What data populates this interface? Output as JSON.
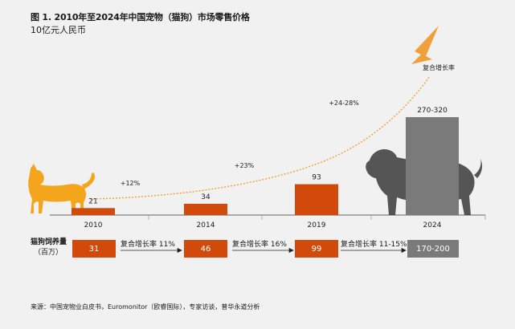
{
  "title": "图 1. 2010年至2024年中国宠物（猫狗）市场零售价格",
  "unit": "10亿元人民币",
  "colors": {
    "bar": "#d24a0b",
    "forecast_bar": "#7a7a7a",
    "arrow": "#f0a03a",
    "icon": "#f3a51c",
    "dog": "#555555"
  },
  "icons": [
    "cat-silhouette-icon",
    "dog-silhouette-icon",
    "growth-arrow-icon"
  ],
  "chart_data": {
    "type": "bar",
    "title": "图 1. 2010年至2024年中国宠物（猫狗）市场零售价格",
    "ylabel": "10亿元人民币",
    "categories": [
      "2010",
      "2014",
      "2019",
      "2024"
    ],
    "values": [
      21,
      34,
      93,
      295
    ],
    "value_labels": [
      "21",
      "34",
      "93",
      "270-320"
    ],
    "forecast_range": {
      "category": "2024",
      "low": 270,
      "high": 320
    },
    "growth_annotations": [
      "+12%",
      "+23%",
      "+24-28%"
    ],
    "trend_label": "复合增长率",
    "grid": false
  },
  "population": {
    "label": "猫狗饲养量",
    "sublabel": "（百万）",
    "values": [
      "31",
      "46",
      "99",
      "170-200"
    ],
    "growth": [
      "复合增长率 11%",
      "复合增长率 16%",
      "复合增长率 11-15%"
    ]
  },
  "source": "来源：中国宠物业白皮书，Euromonitor（欧睿国际），专家访谈，普华永道分析"
}
